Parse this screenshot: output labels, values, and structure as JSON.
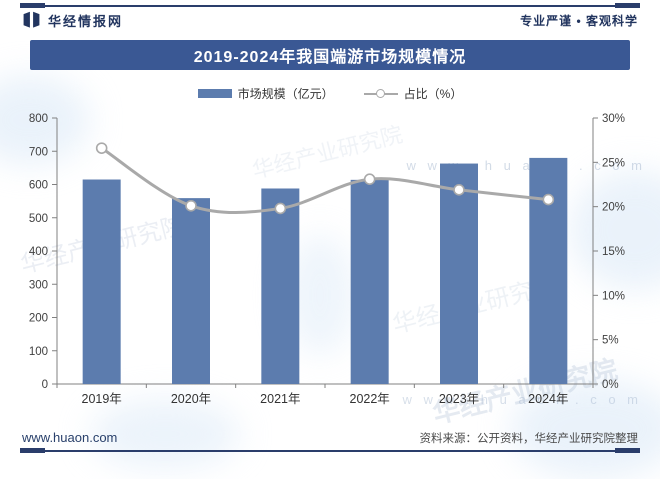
{
  "header": {
    "brand": "华经情报网",
    "tagline": "专业严谨 • 客观科学"
  },
  "title": "2019-2024年我国端游市场规模情况",
  "legend": {
    "bar_label": "市场规模（亿元）",
    "line_label": "占比（%）"
  },
  "colors": {
    "banner": "#3a5894",
    "bar": "#5c7cae",
    "line": "#a9a9a9",
    "marker_fill": "#ffffff",
    "navy": "#2a3d6b",
    "axis": "#808080",
    "tick_text": "#404040"
  },
  "chart_data": {
    "type": "bar+line",
    "title": "2019-2024年我国端游市场规模情况",
    "categories": [
      "2019年",
      "2020年",
      "2021年",
      "2022年",
      "2023年",
      "2024年"
    ],
    "series": [
      {
        "name": "市场规模（亿元）",
        "type": "bar",
        "axis": "left",
        "color": "#5c7cae",
        "values": [
          615,
          559,
          588,
          614,
          663,
          680
        ]
      },
      {
        "name": "占比（%）",
        "type": "line",
        "axis": "right",
        "color": "#a9a9a9",
        "marker_fill": "#ffffff",
        "values": [
          26.6,
          20.1,
          19.8,
          23.1,
          21.9,
          20.8
        ]
      }
    ],
    "left_axis": {
      "min": 0,
      "max": 800,
      "step": 100
    },
    "right_axis": {
      "min": 0,
      "max": 30,
      "step": 5,
      "suffix": "%"
    },
    "grid": false,
    "legend_position": "top"
  },
  "watermark": {
    "brand_text": "华经产业研究院",
    "url_text": "w w w . h u a o n . c o m"
  },
  "footer": {
    "url": "www.huaon.com",
    "source": "资料来源：公开资料，华经产业研究院整理"
  }
}
